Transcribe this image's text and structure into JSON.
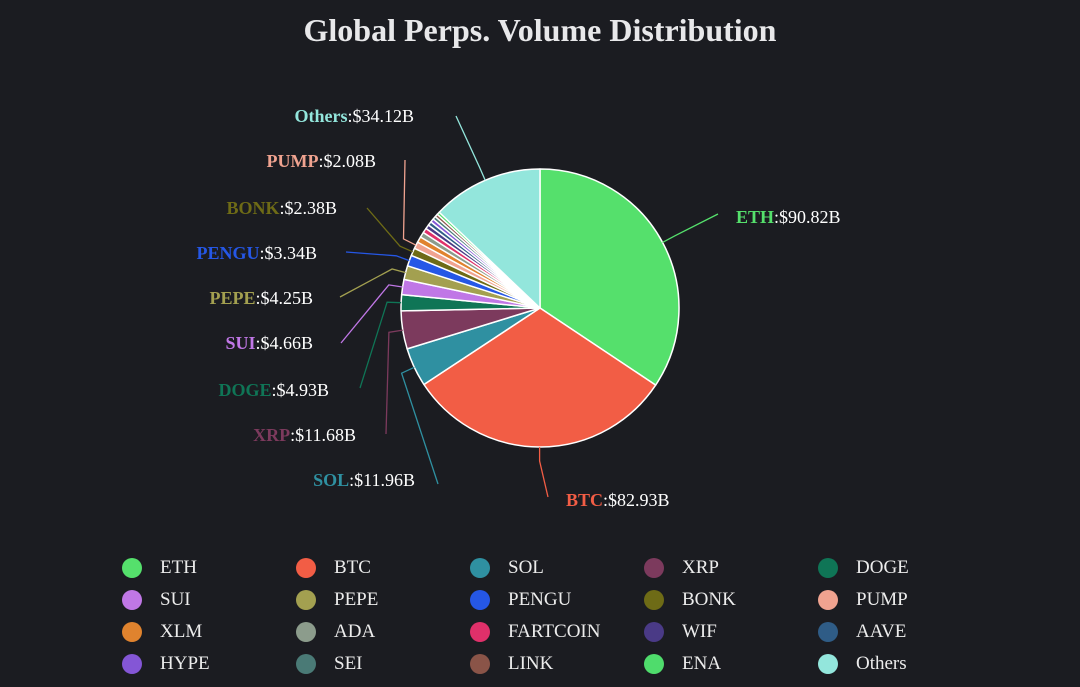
{
  "chart_data": {
    "type": "pie",
    "title": "Global Perps. Volume Distribution",
    "currency": "$",
    "unit": "B",
    "slices": [
      {
        "name": "ETH",
        "value": 90.82,
        "color": "#55e06c",
        "label_value": "$90.82B",
        "labeled": true
      },
      {
        "name": "BTC",
        "value": 82.93,
        "color": "#f25d45",
        "label_value": "$82.93B",
        "labeled": true
      },
      {
        "name": "SOL",
        "value": 11.96,
        "color": "#2f90a1",
        "label_value": "$11.96B",
        "labeled": true
      },
      {
        "name": "XRP",
        "value": 11.68,
        "color": "#7c3a5d",
        "label_value": "$11.68B",
        "labeled": true
      },
      {
        "name": "DOGE",
        "value": 4.93,
        "color": "#0f7556",
        "label_value": "$4.93B",
        "labeled": true
      },
      {
        "name": "SUI",
        "value": 4.66,
        "color": "#c077e6",
        "label_value": "$4.66B",
        "labeled": true
      },
      {
        "name": "PEPE",
        "value": 4.25,
        "color": "#a3a050",
        "label_value": "$4.25B",
        "labeled": true
      },
      {
        "name": "PENGU",
        "value": 3.34,
        "color": "#2557e6",
        "label_value": "$3.34B",
        "labeled": true
      },
      {
        "name": "BONK",
        "value": 2.38,
        "color": "#6e6b16",
        "label_value": "$2.38B",
        "labeled": true
      },
      {
        "name": "PUMP",
        "value": 2.08,
        "color": "#f0a390",
        "label_value": "$2.08B",
        "labeled": true
      },
      {
        "name": "XLM",
        "value": 1.8,
        "color": "#e0832e",
        "labeled": false
      },
      {
        "name": "ADA",
        "value": 1.6,
        "color": "#8c9c8c",
        "labeled": false
      },
      {
        "name": "FARTCOIN",
        "value": 1.45,
        "color": "#e0306a",
        "labeled": false
      },
      {
        "name": "WIF",
        "value": 1.3,
        "color": "#4a3a86",
        "labeled": false
      },
      {
        "name": "AAVE",
        "value": 1.2,
        "color": "#2f5c86",
        "labeled": false
      },
      {
        "name": "HYPE",
        "value": 1.1,
        "color": "#8456d6",
        "labeled": false
      },
      {
        "name": "SEI",
        "value": 1.0,
        "color": "#4a7a76",
        "labeled": false
      },
      {
        "name": "LINK",
        "value": 0.9,
        "color": "#8a5448",
        "labeled": false
      },
      {
        "name": "ENA",
        "value": 0.85,
        "color": "#4fdc6c",
        "labeled": false
      },
      {
        "name": "Others",
        "value": 34.12,
        "color": "#93e6dc",
        "label_value": "$34.12B",
        "labeled": true
      }
    ],
    "legend": {
      "placement": "bottom",
      "items": [
        "ETH",
        "BTC",
        "SOL",
        "XRP",
        "DOGE",
        "SUI",
        "PEPE",
        "PENGU",
        "BONK",
        "PUMP",
        "XLM",
        "ADA",
        "FARTCOIN",
        "WIF",
        "AAVE",
        "HYPE",
        "SEI",
        "LINK",
        "ENA",
        "Others"
      ]
    }
  }
}
